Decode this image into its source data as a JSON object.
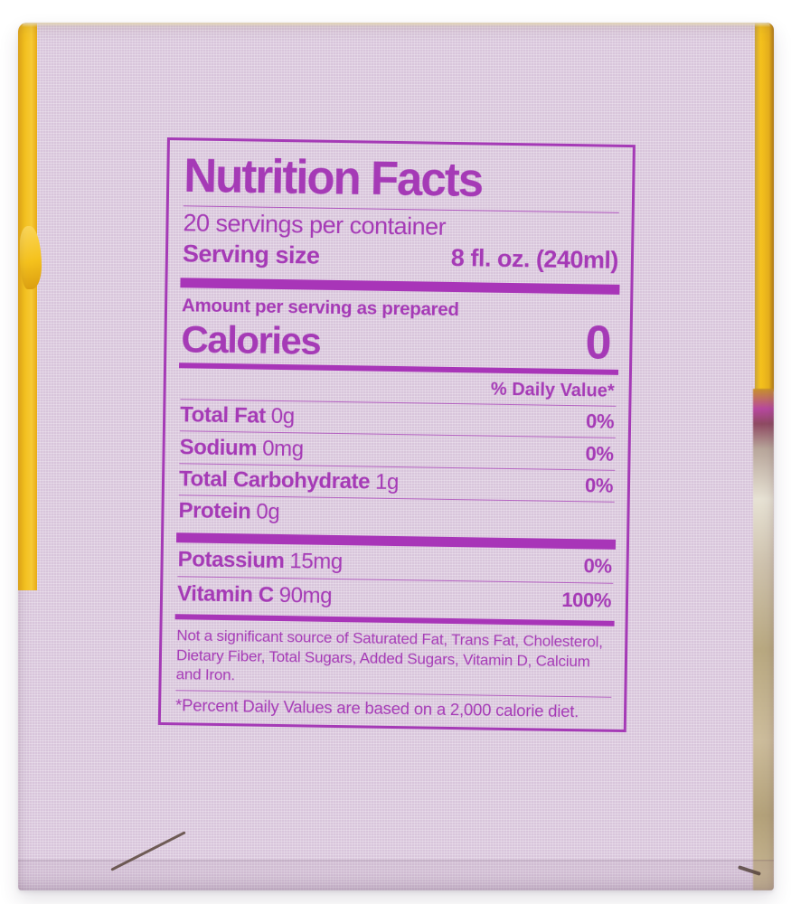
{
  "label": {
    "title": "Nutrition Facts",
    "servings_per_container": "20 servings per container",
    "serving_size_label": "Serving size",
    "serving_size_value": "8 fl. oz. (240ml)",
    "amount_per_serving": "Amount per serving as prepared",
    "calories_label": "Calories",
    "calories_value": "0",
    "daily_value_header": "% Daily Value*",
    "rows": [
      {
        "name": "Total Fat",
        "amount": "0g",
        "dv": "0%"
      },
      {
        "name": "Sodium",
        "amount": "0mg",
        "dv": "0%"
      },
      {
        "name": "Total Carbohydrate",
        "amount": "1g",
        "dv": "0%"
      },
      {
        "name": "Protein",
        "amount": "0g",
        "dv": ""
      }
    ],
    "extra_rows": [
      {
        "name": "Potassium",
        "amount": "15mg",
        "dv": "0%"
      },
      {
        "name": "Vitamin C",
        "amount": "90mg",
        "dv": "100%"
      }
    ],
    "not_significant": "Not a significant source of Saturated Fat, Trans Fat, Cholesterol, Dietary Fiber, Total Sugars, Added Sugars, Vitamin D, Calcium and Iron.",
    "footnote": "*Percent Daily Values are based on a 2,000 calorie diet."
  },
  "colors": {
    "background": "#ffffff",
    "panel": "#d8c5db",
    "print": "#a53ab6",
    "bar": "#a835b8",
    "edge_yellow": "#f5c21d"
  }
}
